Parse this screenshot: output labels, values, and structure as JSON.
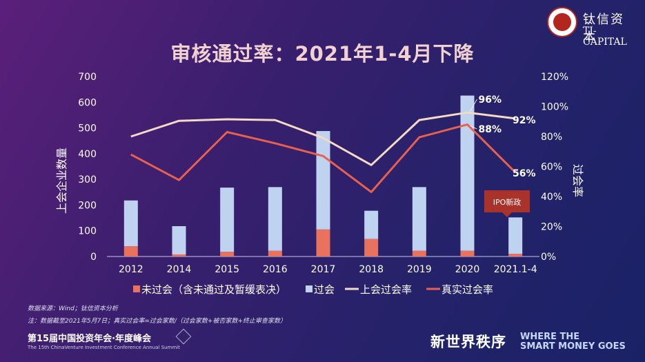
{
  "title": "审核通过率：2021年1-4月下降",
  "logo": {
    "cn": "钛信资本",
    "en": "TI-CAPITAL"
  },
  "chart_data": {
    "type": "bar",
    "categories": [
      "2012",
      "2014",
      "2015",
      "2016",
      "2017",
      "2018",
      "2019",
      "2020",
      "2021.1-4"
    ],
    "stacked": true,
    "series": [
      {
        "name": "未过会（含未通过及暂缓表决）",
        "kind": "bar",
        "axis": "left",
        "color": "#e8725e",
        "values": [
          40,
          8,
          18,
          22,
          105,
          68,
          22,
          22,
          10
        ]
      },
      {
        "name": "过会",
        "kind": "bar",
        "axis": "left",
        "color": "#bfd3f0",
        "values": [
          178,
          110,
          250,
          248,
          383,
          110,
          248,
          604,
          142
        ]
      },
      {
        "name": "上会过会率",
        "kind": "line",
        "axis": "right",
        "color": "#f4d9c3",
        "values": [
          0.8,
          0.905,
          0.915,
          0.91,
          0.79,
          0.61,
          0.91,
          0.96,
          0.92
        ]
      },
      {
        "name": "真实过会率",
        "kind": "line",
        "axis": "right",
        "color": "#e8604e",
        "values": [
          0.68,
          0.51,
          0.83,
          0.755,
          0.67,
          0.43,
          0.795,
          0.88,
          0.56
        ]
      }
    ],
    "ylabel_left": "上会企业数量",
    "ylabel_right": "过会率",
    "ylim_left": [
      0,
      700
    ],
    "ylim_right": [
      0,
      1.2
    ],
    "yticks_left": [
      "0",
      "100",
      "200",
      "300",
      "400",
      "500",
      "600",
      "700"
    ],
    "yticks_right": [
      "0%",
      "20%",
      "40%",
      "60%",
      "80%",
      "100%",
      "120%"
    ],
    "annotations": {
      "approved_2020": "96%",
      "real_2020": "88%",
      "approved_2021": "92%",
      "real_2021": "56%",
      "callout": "IPO新政"
    },
    "legend_position": "bottom",
    "grid": false
  },
  "footnotes": {
    "source": "数据来源：Wind；钛信资本分析",
    "note": "注：数据截至2021年5月7日；真实过会率=过会家数/（过会家数+被否家数+终止审查家数）"
  },
  "footer": {
    "event_cn": "第15届中国投资年会·年度峰会",
    "event_en": "The 15th ChinaVenture Investment Conference Annual Summit",
    "slogan_cn": "新世界秩序",
    "slogan_en_1": "WHERE THE",
    "slogan_en_2": "SMART MONEY GOES"
  }
}
